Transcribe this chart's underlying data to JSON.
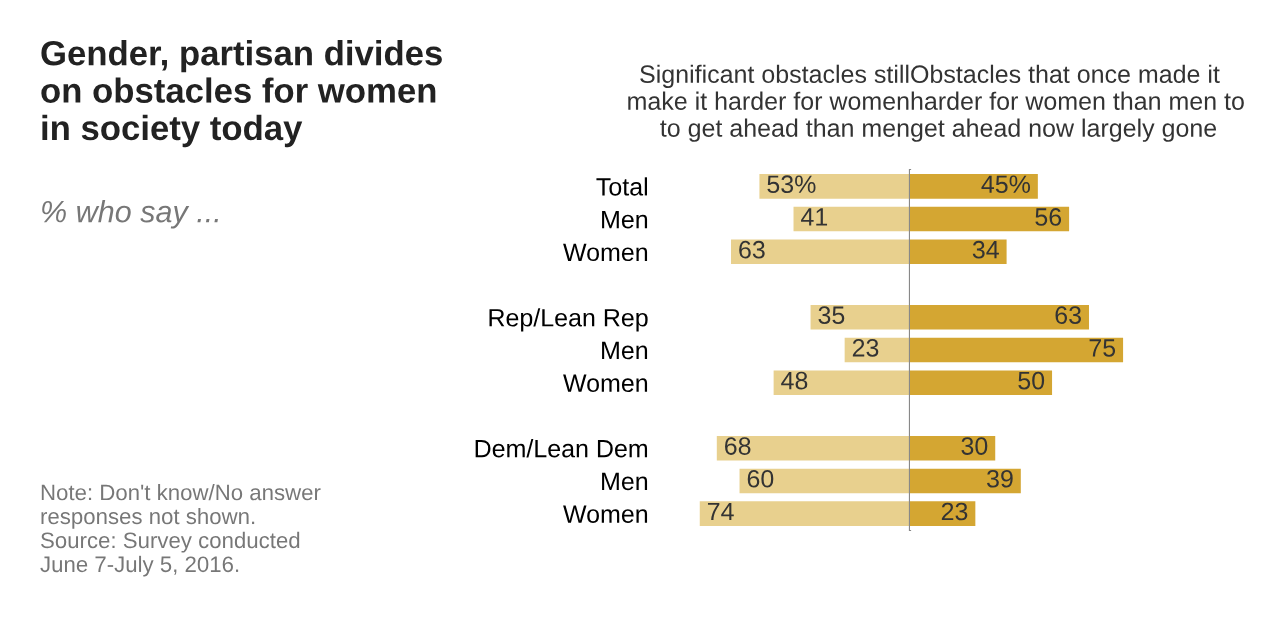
{
  "chart_data": [
    {
      "type": "bar",
      "orientation": "horizontal",
      "title": "Significant obstacles still\nmake it harder for women\nto get ahead than men",
      "categories": [
        "Total",
        "Men",
        "Women",
        null,
        "Rep/Lean Rep",
        "Men",
        "Women",
        null,
        "Dem/Lean Dem",
        "Men",
        "Women"
      ],
      "series": [
        {
          "color": "#e8d08e",
          "values": [
            53,
            41,
            63,
            null,
            35,
            23,
            48,
            null,
            68,
            60,
            74
          ],
          "value_labels": [
            "53%",
            "41",
            "63",
            null,
            "35",
            "23",
            "48",
            null,
            "68",
            "60",
            "74"
          ]
        }
      ],
      "tick_labels": "y",
      "grid": false
    },
    {
      "type": "bar",
      "orientation": "horizontal",
      "title": "Obstacles that once made it\nharder for women than men to\nget ahead now largely gone",
      "categories": [
        null,
        null,
        null,
        null,
        null,
        null,
        null,
        null,
        null,
        null,
        null
      ],
      "series": [
        {
          "color": "#d4a632",
          "values": [
            45,
            56,
            34,
            null,
            63,
            75,
            50,
            null,
            30,
            39,
            23
          ],
          "value_labels": [
            "45%",
            "56",
            "34",
            null,
            "63",
            "75",
            "50",
            null,
            "30",
            "39",
            "23"
          ]
        }
      ],
      "tick_labels": false,
      "grid": false
    },
    {
      "type": "other",
      "title": "Gender, partisan divides\non obstacles for women\nin society today",
      "subtitle": "% who say ...",
      "annotations": [
        "Note: Don't know/No answer\nresponses not shown.\nSource: Survey conducted\nJune 7-July 5, 2016."
      ]
    }
  ]
}
